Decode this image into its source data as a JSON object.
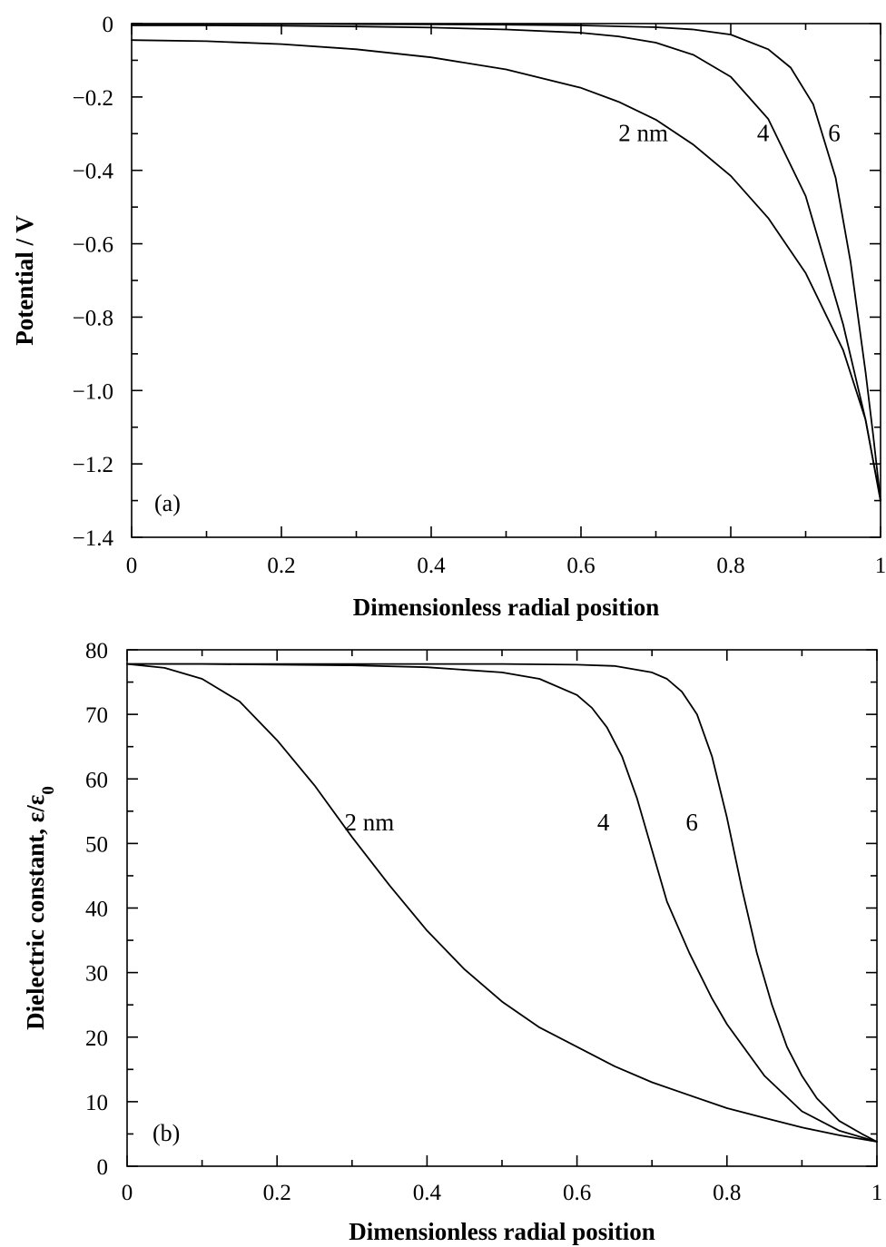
{
  "chart_data": [
    {
      "type": "line",
      "panel_label": "(a)",
      "xlabel": "Dimensionless radial position",
      "ylabel": "Potential / V",
      "xlim": [
        0,
        1
      ],
      "ylim": [
        -1.4,
        0
      ],
      "xticks": [
        0,
        0.2,
        0.4,
        0.6,
        0.8,
        1
      ],
      "xtick_labels": [
        "0",
        "0.2",
        "0.4",
        "0.6",
        "0.8",
        "1"
      ],
      "yticks": [
        0,
        -0.2,
        -0.4,
        -0.6,
        -0.8,
        -1.0,
        -1.2,
        -1.4
      ],
      "ytick_labels": [
        "0",
        "−0.2",
        "−0.4",
        "−0.6",
        "−0.8",
        "−1.0",
        "−1.2",
        "−1.4"
      ],
      "grid": false,
      "annotations": [
        {
          "text": "2 nm",
          "x": 0.65,
          "y": -0.32
        },
        {
          "text": "4",
          "x": 0.835,
          "y": -0.32
        },
        {
          "text": "6",
          "x": 0.93,
          "y": -0.32
        }
      ],
      "series": [
        {
          "label": "2 nm",
          "x": [
            0,
            0.1,
            0.2,
            0.3,
            0.4,
            0.5,
            0.6,
            0.65,
            0.7,
            0.75,
            0.8,
            0.85,
            0.9,
            0.95,
            0.98,
            1.0
          ],
          "y": [
            -0.045,
            -0.048,
            -0.056,
            -0.07,
            -0.092,
            -0.125,
            -0.175,
            -0.213,
            -0.262,
            -0.33,
            -0.415,
            -0.53,
            -0.68,
            -0.89,
            -1.08,
            -1.3
          ]
        },
        {
          "label": "4",
          "x": [
            0,
            0.1,
            0.2,
            0.3,
            0.4,
            0.5,
            0.6,
            0.65,
            0.7,
            0.75,
            0.8,
            0.85,
            0.9,
            0.95,
            0.98,
            1.0
          ],
          "y": [
            -0.005,
            -0.005,
            -0.006,
            -0.008,
            -0.011,
            -0.016,
            -0.025,
            -0.035,
            -0.052,
            -0.085,
            -0.145,
            -0.26,
            -0.47,
            -0.82,
            -1.08,
            -1.3
          ]
        },
        {
          "label": "6",
          "x": [
            0,
            0.2,
            0.4,
            0.5,
            0.6,
            0.7,
            0.75,
            0.8,
            0.85,
            0.88,
            0.91,
            0.94,
            0.96,
            0.98,
            0.99,
            1.0
          ],
          "y": [
            -0.001,
            -0.001,
            -0.002,
            -0.003,
            -0.005,
            -0.01,
            -0.016,
            -0.03,
            -0.07,
            -0.12,
            -0.22,
            -0.42,
            -0.65,
            -0.95,
            -1.12,
            -1.3
          ]
        }
      ]
    },
    {
      "type": "line",
      "panel_label": "(b)",
      "xlabel": "Dimensionless radial position",
      "ylabel": "Dielectric constant, ε/ε",
      "ylabel_subscript": "0",
      "xlim": [
        0,
        1
      ],
      "ylim": [
        0,
        80
      ],
      "xticks": [
        0,
        0.2,
        0.4,
        0.6,
        0.8,
        1
      ],
      "xtick_labels": [
        "0",
        "0.2",
        "0.4",
        "0.6",
        "0.8",
        "1"
      ],
      "yticks": [
        0,
        10,
        20,
        30,
        40,
        50,
        60,
        70,
        80
      ],
      "ytick_labels": [
        "0",
        "10",
        "20",
        "30",
        "40",
        "50",
        "60",
        "70",
        "80"
      ],
      "grid": false,
      "annotations": [
        {
          "text": "2 nm",
          "x": 0.29,
          "y": 52
        },
        {
          "text": "4",
          "x": 0.627,
          "y": 52
        },
        {
          "text": "6",
          "x": 0.745,
          "y": 52
        }
      ],
      "series": [
        {
          "label": "2 nm",
          "x": [
            0,
            0.05,
            0.1,
            0.15,
            0.2,
            0.25,
            0.3,
            0.35,
            0.4,
            0.45,
            0.5,
            0.55,
            0.6,
            0.65,
            0.7,
            0.75,
            0.8,
            0.85,
            0.9,
            0.95,
            1.0
          ],
          "y": [
            77.8,
            77.2,
            75.5,
            72,
            66,
            59,
            51,
            43.5,
            36.5,
            30.5,
            25.5,
            21.5,
            18.5,
            15.5,
            13,
            11,
            9,
            7.5,
            6,
            4.8,
            3.8
          ]
        },
        {
          "label": "4",
          "x": [
            0,
            0.1,
            0.2,
            0.3,
            0.4,
            0.5,
            0.55,
            0.6,
            0.62,
            0.64,
            0.66,
            0.68,
            0.7,
            0.72,
            0.75,
            0.78,
            0.8,
            0.85,
            0.9,
            0.95,
            1.0
          ],
          "y": [
            77.8,
            77.8,
            77.7,
            77.6,
            77.3,
            76.5,
            75.5,
            73,
            71,
            68,
            63.5,
            57,
            49,
            41,
            33,
            26,
            22,
            14,
            8.5,
            5.5,
            3.8
          ]
        },
        {
          "label": "6",
          "x": [
            0,
            0.2,
            0.4,
            0.5,
            0.6,
            0.65,
            0.7,
            0.72,
            0.74,
            0.76,
            0.78,
            0.8,
            0.82,
            0.84,
            0.86,
            0.88,
            0.9,
            0.92,
            0.95,
            0.98,
            1.0
          ],
          "y": [
            77.8,
            77.8,
            77.8,
            77.8,
            77.7,
            77.5,
            76.5,
            75.5,
            73.5,
            70,
            63.5,
            54,
            43,
            33,
            25,
            18.5,
            14,
            10.5,
            7,
            5,
            3.8
          ]
        }
      ]
    }
  ]
}
